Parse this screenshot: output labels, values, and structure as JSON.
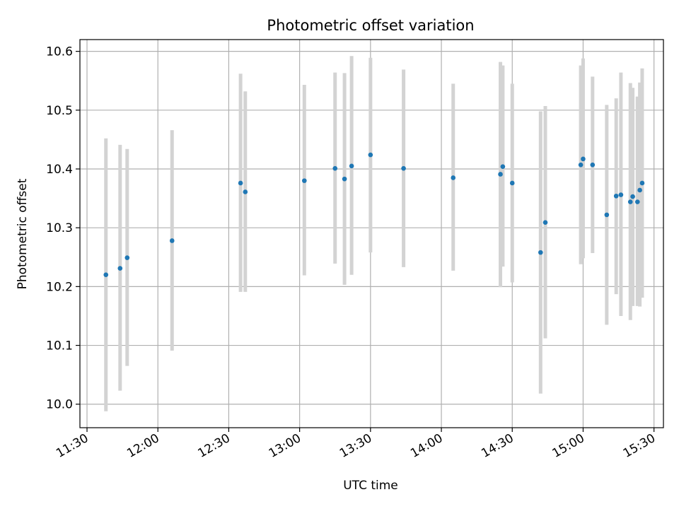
{
  "chart_data": {
    "type": "scatter",
    "title": "Photometric offset variation",
    "xlabel": "UTC time",
    "ylabel": "Photometric offset",
    "x_ticks": [
      "11:30",
      "12:00",
      "12:30",
      "13:00",
      "13:30",
      "14:00",
      "14:30",
      "15:00",
      "15:30"
    ],
    "y_ticks": [
      "10.0",
      "10.1",
      "10.2",
      "10.3",
      "10.4",
      "10.5",
      "10.6"
    ],
    "xlim": [
      "11:27",
      "15:34"
    ],
    "ylim": [
      9.96,
      10.62
    ],
    "grid": true,
    "marker_color": "#1f77b4",
    "errorbar_color": "#d3d3d3",
    "series": [
      {
        "points": [
          {
            "x": "11:38",
            "y": 10.22,
            "low": 9.988,
            "high": 10.452
          },
          {
            "x": "11:44",
            "y": 10.231,
            "low": 10.023,
            "high": 10.441
          },
          {
            "x": "11:47",
            "y": 10.249,
            "low": 10.065,
            "high": 10.434
          },
          {
            "x": "12:06",
            "y": 10.278,
            "low": 10.091,
            "high": 10.466
          },
          {
            "x": "12:35",
            "y": 10.376,
            "low": 10.191,
            "high": 10.562
          },
          {
            "x": "12:37",
            "y": 10.361,
            "low": 10.191,
            "high": 10.532
          },
          {
            "x": "13:02",
            "y": 10.38,
            "low": 10.219,
            "high": 10.543
          },
          {
            "x": "13:15",
            "y": 10.401,
            "low": 10.239,
            "high": 10.564
          },
          {
            "x": "13:19",
            "y": 10.383,
            "low": 10.203,
            "high": 10.563
          },
          {
            "x": "13:22",
            "y": 10.405,
            "low": 10.22,
            "high": 10.592
          },
          {
            "x": "13:30",
            "y": 10.424,
            "low": 10.258,
            "high": 10.589
          },
          {
            "x": "13:44",
            "y": 10.401,
            "low": 10.233,
            "high": 10.569
          },
          {
            "x": "14:05",
            "y": 10.385,
            "low": 10.227,
            "high": 10.545
          },
          {
            "x": "14:25",
            "y": 10.391,
            "low": 10.199,
            "high": 10.582
          },
          {
            "x": "14:26",
            "y": 10.404,
            "low": 10.234,
            "high": 10.576
          },
          {
            "x": "14:30",
            "y": 10.376,
            "low": 10.207,
            "high": 10.545
          },
          {
            "x": "14:42",
            "y": 10.258,
            "low": 10.018,
            "high": 10.498
          },
          {
            "x": "14:44",
            "y": 10.309,
            "low": 10.112,
            "high": 10.507
          },
          {
            "x": "14:59",
            "y": 10.407,
            "low": 10.238,
            "high": 10.576
          },
          {
            "x": "15:00",
            "y": 10.417,
            "low": 10.248,
            "high": 10.588
          },
          {
            "x": "15:04",
            "y": 10.407,
            "low": 10.257,
            "high": 10.557
          },
          {
            "x": "15:10",
            "y": 10.322,
            "low": 10.135,
            "high": 10.509
          },
          {
            "x": "15:14",
            "y": 10.354,
            "low": 10.187,
            "high": 10.52
          },
          {
            "x": "15:16",
            "y": 10.356,
            "low": 10.15,
            "high": 10.564
          },
          {
            "x": "15:20",
            "y": 10.344,
            "low": 10.143,
            "high": 10.546
          },
          {
            "x": "15:21",
            "y": 10.353,
            "low": 10.167,
            "high": 10.538
          },
          {
            "x": "15:23",
            "y": 10.344,
            "low": 10.167,
            "high": 10.523
          },
          {
            "x": "15:24",
            "y": 10.364,
            "low": 10.166,
            "high": 10.547
          },
          {
            "x": "15:25",
            "y": 10.376,
            "low": 10.181,
            "high": 10.571
          }
        ]
      }
    ]
  }
}
